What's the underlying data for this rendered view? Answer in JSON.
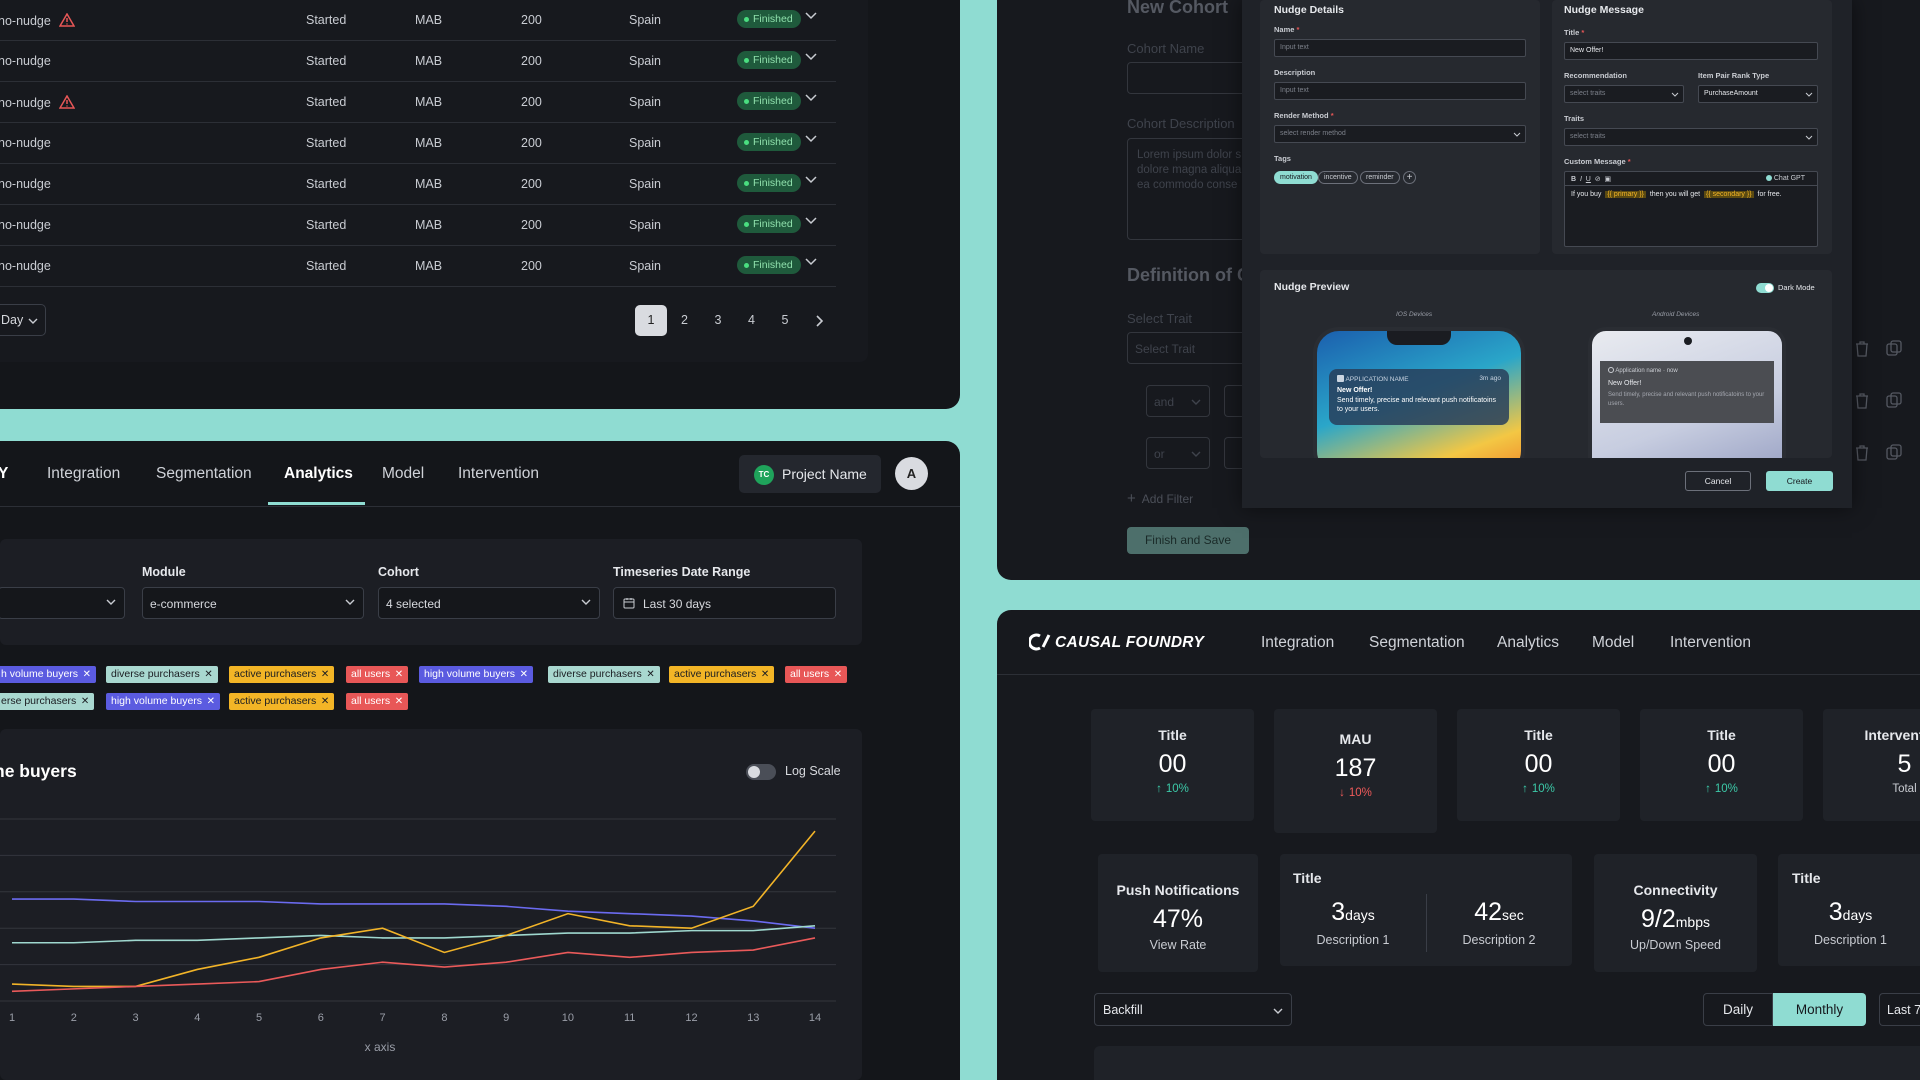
{
  "table": {
    "rows": [
      {
        "name": "no-nudge",
        "warn": true,
        "status": "Started",
        "algo": "MAB",
        "count": "200",
        "country": "Spain",
        "badge": "Finished"
      },
      {
        "name": "no-nudge",
        "warn": false,
        "status": "Started",
        "algo": "MAB",
        "count": "200",
        "country": "Spain",
        "badge": "Finished"
      },
      {
        "name": "no-nudge",
        "warn": true,
        "status": "Started",
        "algo": "MAB",
        "count": "200",
        "country": "Spain",
        "badge": "Finished"
      },
      {
        "name": "no-nudge",
        "warn": false,
        "status": "Started",
        "algo": "MAB",
        "count": "200",
        "country": "Spain",
        "badge": "Finished"
      },
      {
        "name": "no-nudge",
        "warn": false,
        "status": "Started",
        "algo": "MAB",
        "count": "200",
        "country": "Spain",
        "badge": "Finished"
      },
      {
        "name": "no-nudge",
        "warn": false,
        "status": "Started",
        "algo": "MAB",
        "count": "200",
        "country": "Spain",
        "badge": "Finished"
      },
      {
        "name": "no-nudge",
        "warn": false,
        "status": "Started",
        "algo": "MAB",
        "count": "200",
        "country": "Spain",
        "badge": "Finished"
      }
    ],
    "period_select": "Day",
    "pages": [
      "1",
      "2",
      "3",
      "4",
      "5"
    ],
    "active_page": "1"
  },
  "analytics": {
    "logo_fragment": "Y",
    "nav": [
      "Integration",
      "Segmentation",
      "Analytics",
      "Model",
      "Intervention"
    ],
    "active_nav": "Analytics",
    "project_initials": "TC",
    "project_name": "Project Name",
    "avatar": "A",
    "filters": {
      "module_label": "Module",
      "module_value": "e-commerce",
      "cohort_label": "Cohort",
      "cohort_value": "4 selected",
      "range_label": "Timeseries Date Range",
      "range_value": "Last 30 days"
    },
    "tags_row1": [
      {
        "text": "h volume buyers",
        "kind": "hv"
      },
      {
        "text": "diverse purchasers",
        "kind": "dp"
      },
      {
        "text": "active purchasers",
        "kind": "ap"
      },
      {
        "text": "all users",
        "kind": "au"
      },
      {
        "text": "high volume buyers",
        "kind": "hv"
      },
      {
        "text": "diverse purchasers",
        "kind": "dp"
      },
      {
        "text": "active purchasers",
        "kind": "ap"
      },
      {
        "text": "all users",
        "kind": "au"
      }
    ],
    "tags_row2": [
      {
        "text": "erse purchasers",
        "kind": "dp"
      },
      {
        "text": "high volume buyers",
        "kind": "hv"
      },
      {
        "text": "active purchasers",
        "kind": "ap"
      },
      {
        "text": "all users",
        "kind": "au"
      }
    ],
    "chart_title": "ne buyers",
    "log_scale_label": "Log Scale"
  },
  "chart_data": {
    "type": "line",
    "title": "ne buyers",
    "xlabel": "x axis",
    "x": [
      1,
      2,
      3,
      4,
      5,
      6,
      7,
      8,
      9,
      10,
      11,
      12,
      13,
      14
    ],
    "series": [
      {
        "color": "#6b6bf0",
        "values": [
          62,
          62,
          61,
          61,
          61,
          60,
          60,
          60,
          59,
          57,
          56,
          55,
          53,
          50
        ]
      },
      {
        "color": "#9fd8cf",
        "values": [
          44,
          44,
          45,
          45,
          46,
          47,
          46,
          46,
          47,
          48,
          48,
          49,
          49,
          51
        ]
      },
      {
        "color": "#f2b428",
        "values": [
          27,
          26,
          26,
          33,
          38,
          46,
          50,
          40,
          47,
          56,
          51,
          50,
          59,
          90
        ]
      },
      {
        "color": "#ea5a5a",
        "values": [
          24,
          25,
          26,
          27,
          28,
          33,
          36,
          34,
          36,
          40,
          38,
          40,
          41,
          46
        ]
      }
    ],
    "ylim": [
      20,
      95
    ]
  },
  "cohort": {
    "title": "New Cohort",
    "name_label": "Cohort Name",
    "desc_label": "Cohort Description",
    "desc_text": [
      "Lorem ipsum dolor s",
      "dolore magna aliqua",
      "ea commodo conse"
    ],
    "definition": "Definition of C",
    "select_trait_label": "Select Trait",
    "select_trait_ph": "Select Trait",
    "and": "and",
    "or": "or",
    "add_filter": "Add Filter",
    "finish": "Finish and Save"
  },
  "nudge": {
    "details_title": "Nudge Details",
    "name_label": "Name",
    "name_ph": "Input text",
    "desc_label": "Description",
    "desc_ph": "Input text",
    "render_label": "Render Method",
    "render_ph": "select render method",
    "tags_label": "Tags",
    "tags": [
      "motivation",
      "incentive",
      "reminder"
    ],
    "message_title": "Nudge Message",
    "title_label": "Title",
    "title_value": "New Offer!",
    "rec_label": "Recommendation",
    "rec_ph": "select traits",
    "rank_label": "Item Pair Rank Type",
    "rank_value": "PurchaseAmount",
    "traits_label": "Traits",
    "traits_ph": "select traits",
    "custom_label": "Custom Message",
    "chatgpt": "Chat GPT",
    "msg_pre": "If you buy",
    "msg_primary": "{{ primary }}",
    "msg_mid": "then you will get",
    "msg_secondary": "{{ secondary }}",
    "msg_post": "for free.",
    "preview_title": "Nudge Preview",
    "dark_mode": "Dark Mode",
    "ios_label": "IOS Devices",
    "android_label": "Android Devices",
    "ios_app": "APPLICATION NAME",
    "ios_time": "3m ago",
    "notif_title": "New Offer!",
    "notif_body": "Send timely, precise and relevant push notificatoins to your users.",
    "android_app": "Application name",
    "android_time": "now",
    "cancel": "Cancel",
    "create": "Create"
  },
  "dashboard": {
    "brand": "CAUSAL FOUNDRY",
    "nav": [
      "Integration",
      "Segmentation",
      "Analytics",
      "Model",
      "Intervention"
    ],
    "stats": [
      {
        "title": "Title",
        "value": "00",
        "sub": "10%",
        "dir": "up"
      },
      {
        "title": "MAU",
        "value": "187",
        "sub": "10%",
        "dir": "down"
      },
      {
        "title": "Title",
        "value": "00",
        "sub": "10%",
        "dir": "up"
      },
      {
        "title": "Title",
        "value": "00",
        "sub": "10%",
        "dir": "up"
      },
      {
        "title": "Intervention",
        "value": "5",
        "sub": "Total",
        "dir": "none"
      }
    ],
    "push": {
      "title": "Push Notifications",
      "value": "47%",
      "sub": "View Rate"
    },
    "dual": {
      "title": "Title",
      "v1": "3",
      "u1": "days",
      "d1": "Description 1",
      "v2": "42",
      "u2": "sec",
      "d2": "Description 2"
    },
    "conn": {
      "title": "Connectivity",
      "value": "9/2",
      "unit": "mbps",
      "sub": "Up/Down Speed"
    },
    "last": {
      "title": "Title",
      "value": "3",
      "unit": "days",
      "sub": "Description 1"
    },
    "backfill": "Backfill",
    "daily": "Daily",
    "monthly": "Monthly",
    "last7": "Last 7"
  },
  "colors": {
    "accent": "#8fdcd2",
    "background": "#17191e",
    "finished_badge": "#1f5a3c"
  }
}
